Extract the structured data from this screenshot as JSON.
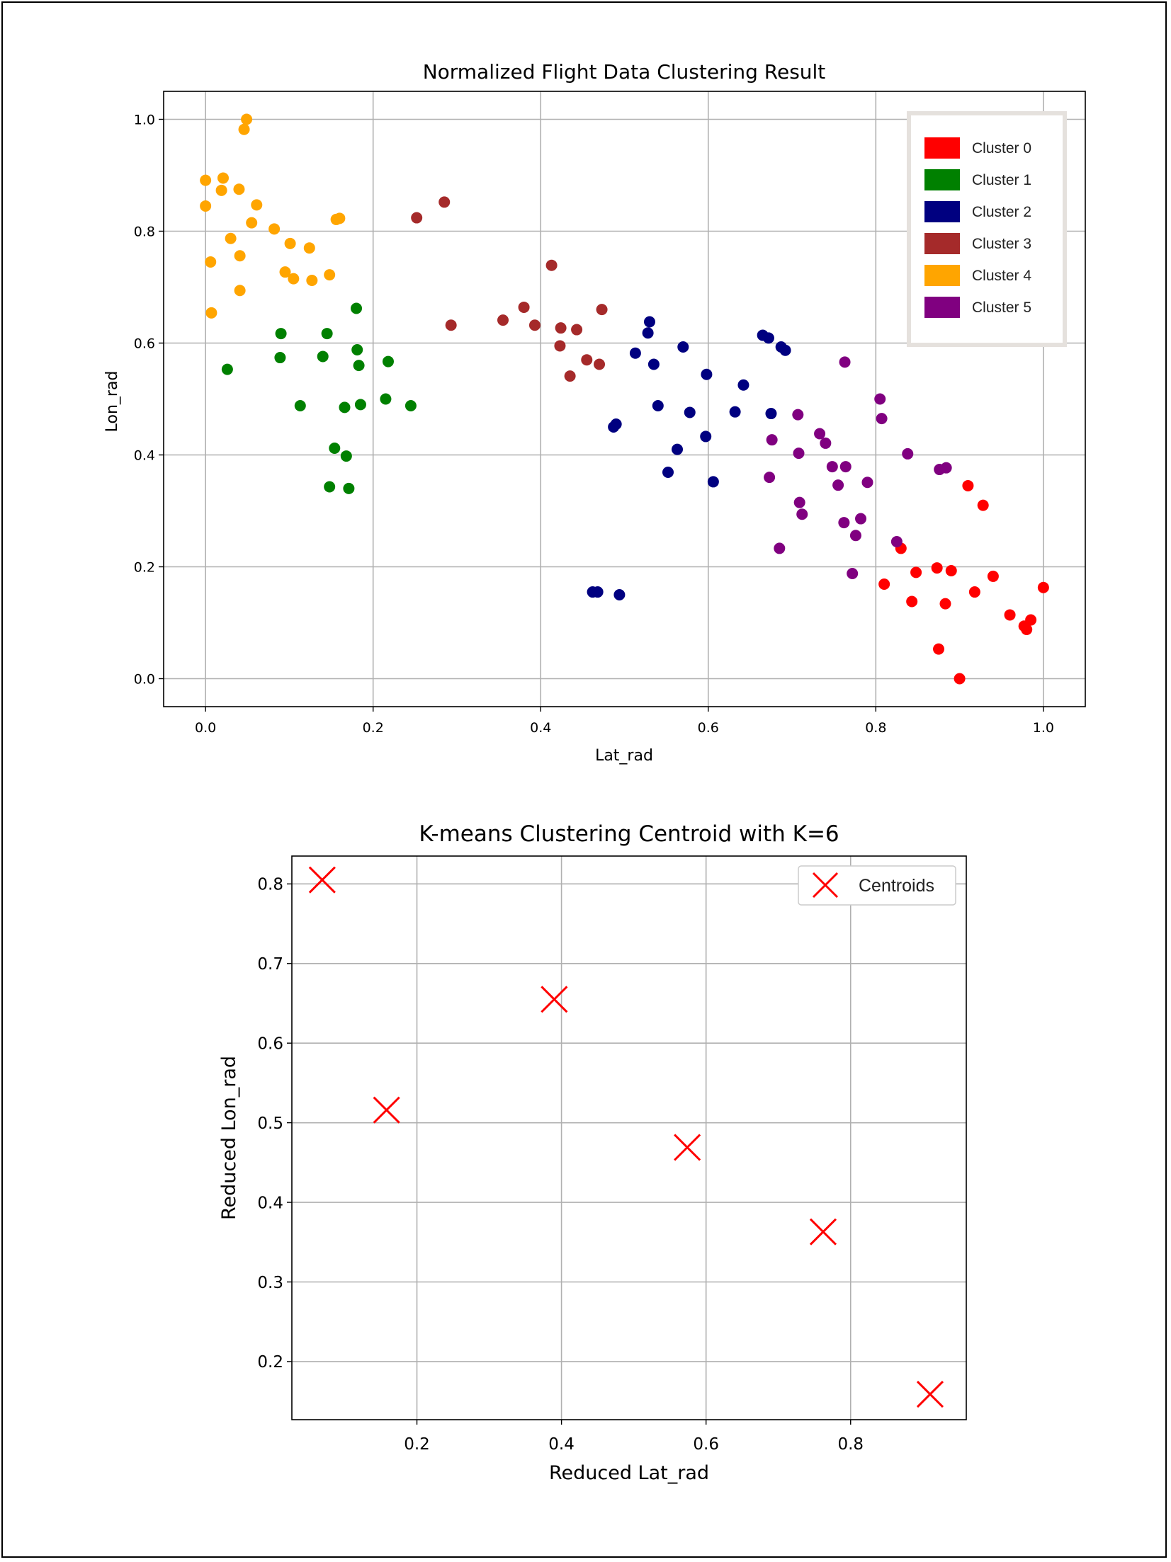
{
  "chart_data": [
    {
      "type": "scatter",
      "title": "Normalized Flight Data Clustering Result",
      "xlabel": "Lat_rad",
      "ylabel": "Lon_rad",
      "xlim": [
        -0.05,
        1.05
      ],
      "ylim": [
        -0.05,
        1.05
      ],
      "xticks": [
        "0.0",
        "0.2",
        "0.4",
        "0.6",
        "0.8",
        "1.0"
      ],
      "yticks": [
        "0.0",
        "0.2",
        "0.4",
        "0.6",
        "0.8",
        "1.0"
      ],
      "grid": true,
      "legend_position": "upper-right",
      "series": [
        {
          "name": "Cluster 0",
          "color": "#ff0000",
          "points": [
            [
              0.91,
              0.345
            ],
            [
              0.928,
              0.31
            ],
            [
              0.83,
              0.233
            ],
            [
              0.81,
              0.169
            ],
            [
              0.848,
              0.19
            ],
            [
              0.843,
              0.138
            ],
            [
              0.873,
              0.198
            ],
            [
              0.875,
              0.053
            ],
            [
              0.883,
              0.134
            ],
            [
              0.89,
              0.193
            ],
            [
              0.9,
              0.0
            ],
            [
              0.918,
              0.155
            ],
            [
              0.94,
              0.183
            ],
            [
              0.96,
              0.114
            ],
            [
              0.977,
              0.094
            ],
            [
              0.98,
              0.088
            ],
            [
              0.985,
              0.105
            ],
            [
              1.0,
              0.163
            ]
          ]
        },
        {
          "name": "Cluster 1",
          "color": "#008000",
          "points": [
            [
              0.026,
              0.553
            ],
            [
              0.089,
              0.574
            ],
            [
              0.09,
              0.617
            ],
            [
              0.113,
              0.488
            ],
            [
              0.14,
              0.576
            ],
            [
              0.145,
              0.617
            ],
            [
              0.148,
              0.343
            ],
            [
              0.154,
              0.412
            ],
            [
              0.166,
              0.485
            ],
            [
              0.168,
              0.398
            ],
            [
              0.171,
              0.34
            ],
            [
              0.18,
              0.662
            ],
            [
              0.181,
              0.588
            ],
            [
              0.183,
              0.56
            ],
            [
              0.185,
              0.49
            ],
            [
              0.215,
              0.5
            ],
            [
              0.218,
              0.567
            ],
            [
              0.245,
              0.488
            ]
          ]
        },
        {
          "name": "Cluster 2",
          "color": "#000080",
          "points": [
            [
              0.462,
              0.155
            ],
            [
              0.468,
              0.155
            ],
            [
              0.487,
              0.45
            ],
            [
              0.49,
              0.455
            ],
            [
              0.494,
              0.15
            ],
            [
              0.513,
              0.582
            ],
            [
              0.528,
              0.618
            ],
            [
              0.53,
              0.638
            ],
            [
              0.535,
              0.562
            ],
            [
              0.54,
              0.488
            ],
            [
              0.552,
              0.369
            ],
            [
              0.563,
              0.41
            ],
            [
              0.57,
              0.593
            ],
            [
              0.578,
              0.476
            ],
            [
              0.597,
              0.433
            ],
            [
              0.598,
              0.544
            ],
            [
              0.606,
              0.352
            ],
            [
              0.632,
              0.477
            ],
            [
              0.642,
              0.525
            ],
            [
              0.665,
              0.614
            ],
            [
              0.672,
              0.609
            ],
            [
              0.675,
              0.474
            ],
            [
              0.687,
              0.593
            ],
            [
              0.692,
              0.587
            ]
          ]
        },
        {
          "name": "Cluster 3",
          "color": "#a52a2a",
          "points": [
            [
              0.252,
              0.824
            ],
            [
              0.285,
              0.852
            ],
            [
              0.293,
              0.632
            ],
            [
              0.355,
              0.641
            ],
            [
              0.38,
              0.664
            ],
            [
              0.393,
              0.632
            ],
            [
              0.413,
              0.739
            ],
            [
              0.423,
              0.595
            ],
            [
              0.424,
              0.627
            ],
            [
              0.435,
              0.541
            ],
            [
              0.443,
              0.624
            ],
            [
              0.455,
              0.57
            ],
            [
              0.47,
              0.562
            ],
            [
              0.473,
              0.66
            ]
          ]
        },
        {
          "name": "Cluster 4",
          "color": "#ffa500",
          "points": [
            [
              0.0,
              0.891
            ],
            [
              0.0,
              0.845
            ],
            [
              0.006,
              0.745
            ],
            [
              0.007,
              0.654
            ],
            [
              0.019,
              0.873
            ],
            [
              0.021,
              0.895
            ],
            [
              0.03,
              0.787
            ],
            [
              0.04,
              0.875
            ],
            [
              0.041,
              0.756
            ],
            [
              0.041,
              0.694
            ],
            [
              0.046,
              0.982
            ],
            [
              0.049,
              1.0
            ],
            [
              0.055,
              0.815
            ],
            [
              0.061,
              0.847
            ],
            [
              0.082,
              0.804
            ],
            [
              0.095,
              0.727
            ],
            [
              0.101,
              0.778
            ],
            [
              0.105,
              0.715
            ],
            [
              0.124,
              0.77
            ],
            [
              0.127,
              0.712
            ],
            [
              0.148,
              0.722
            ],
            [
              0.156,
              0.821
            ],
            [
              0.16,
              0.823
            ]
          ]
        },
        {
          "name": "Cluster 5",
          "color": "#800080",
          "points": [
            [
              0.673,
              0.36
            ],
            [
              0.676,
              0.427
            ],
            [
              0.685,
              0.233
            ],
            [
              0.707,
              0.472
            ],
            [
              0.708,
              0.403
            ],
            [
              0.709,
              0.315
            ],
            [
              0.712,
              0.294
            ],
            [
              0.733,
              0.438
            ],
            [
              0.74,
              0.421
            ],
            [
              0.748,
              0.379
            ],
            [
              0.755,
              0.346
            ],
            [
              0.762,
              0.279
            ],
            [
              0.763,
              0.566
            ],
            [
              0.764,
              0.379
            ],
            [
              0.772,
              0.188
            ],
            [
              0.776,
              0.256
            ],
            [
              0.782,
              0.286
            ],
            [
              0.79,
              0.351
            ],
            [
              0.805,
              0.5
            ],
            [
              0.807,
              0.465
            ],
            [
              0.825,
              0.245
            ],
            [
              0.838,
              0.402
            ],
            [
              0.876,
              0.374
            ],
            [
              0.884,
              0.377
            ]
          ]
        }
      ]
    },
    {
      "type": "scatter",
      "title": "K-means Clustering Centroid with K=6",
      "xlabel": "Reduced Lat_rad",
      "ylabel": "Reduced Lon_rad",
      "xlim": [
        0.027,
        0.96
      ],
      "ylim": [
        0.127,
        0.835
      ],
      "xticks": [
        "0.2",
        "0.4",
        "0.6",
        "0.8"
      ],
      "yticks": [
        "0.2",
        "0.3",
        "0.4",
        "0.5",
        "0.6",
        "0.7",
        "0.8"
      ],
      "grid": true,
      "legend_position": "upper-right",
      "series": [
        {
          "name": "Centroids",
          "color": "#ff0000",
          "marker": "x",
          "points": [
            [
              0.069,
              0.805
            ],
            [
              0.158,
              0.516
            ],
            [
              0.39,
              0.655
            ],
            [
              0.574,
              0.469
            ],
            [
              0.762,
              0.363
            ],
            [
              0.91,
              0.159
            ]
          ]
        }
      ]
    }
  ]
}
